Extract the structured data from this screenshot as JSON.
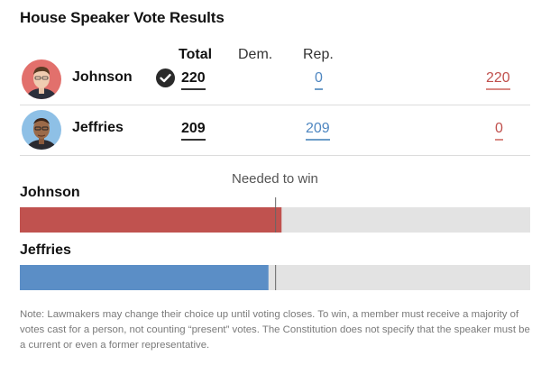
{
  "title": "House Speaker Vote Results",
  "columns": {
    "total": "Total",
    "dem": "Dem.",
    "rep": "Rep."
  },
  "candidates": [
    {
      "name": "Johnson",
      "winner": true,
      "total": "220",
      "dem": "0",
      "rep": "220",
      "avatar_icon": "portrait-icon",
      "bar_color": "#c0524f"
    },
    {
      "name": "Jeffries",
      "winner": false,
      "total": "209",
      "dem": "209",
      "rep": "0",
      "avatar_icon": "portrait-icon",
      "bar_color": "#5b8ec6"
    }
  ],
  "needed_label": "Needed to win",
  "note": "Note: Lawmakers may change their choice up until voting closes. To win, a member must receive a majority of votes cast for a person, not counting “present” votes. The Constitution does not specify that the speaker must be a current or even a former representative.",
  "chart_data": {
    "type": "bar",
    "orientation": "horizontal",
    "title": "",
    "categories": [
      "Johnson",
      "Jeffries"
    ],
    "values": [
      220,
      209
    ],
    "threshold": {
      "label": "Needed to win",
      "value": 215
    },
    "xlim": [
      0,
      429
    ],
    "colors": {
      "Johnson": "#c0524f",
      "Jeffries": "#5b8ec6",
      "track": "#e3e3e3"
    }
  }
}
